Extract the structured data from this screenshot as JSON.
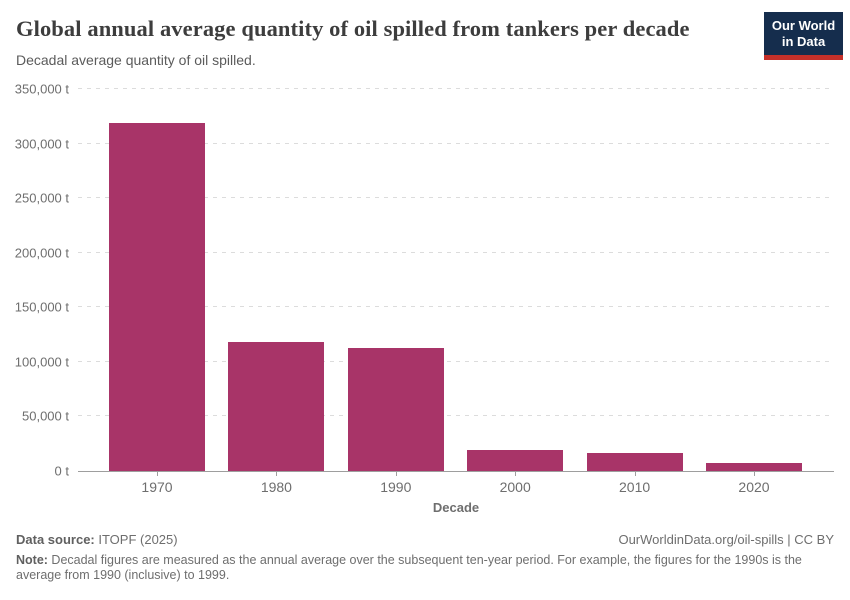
{
  "logo": {
    "line1": "Our World",
    "line2": "in Data",
    "bg_color": "#152d4d",
    "bar_color": "#c5302a"
  },
  "chart_data": {
    "type": "bar",
    "title": "Global annual average quantity of oil spilled from tankers per decade",
    "subtitle": "Decadal average quantity of oil spilled.",
    "categories": [
      "1970",
      "1980",
      "1990",
      "2000",
      "2010",
      "2020"
    ],
    "values": [
      319000,
      118000,
      113000,
      19600,
      16400,
      7500
    ],
    "xlabel": "Decade",
    "ylabel": "",
    "unit": "t",
    "ylim": [
      0,
      350000
    ],
    "yticks": [
      {
        "value": 0,
        "label": "0 t"
      },
      {
        "value": 50000,
        "label": "50,000 t"
      },
      {
        "value": 100000,
        "label": "100,000 t"
      },
      {
        "value": 150000,
        "label": "150,000 t"
      },
      {
        "value": 200000,
        "label": "200,000 t"
      },
      {
        "value": 250000,
        "label": "250,000 t"
      },
      {
        "value": 300000,
        "label": "300,000 t"
      },
      {
        "value": 350000,
        "label": "350,000 t"
      }
    ],
    "bar_color": "#a83468",
    "grid": true,
    "legend": "none"
  },
  "footer": {
    "datasource_label": "Data source:",
    "datasource_value": " ITOPF (2025)",
    "attribution": "OurWorldinData.org/oil-spills | CC BY",
    "note_label": "Note:",
    "note_text": " Decadal figures are measured as the annual average over the subsequent ten-year period. For example, the figures for the 1990s is the average from 1990 (inclusive) to 1999."
  }
}
